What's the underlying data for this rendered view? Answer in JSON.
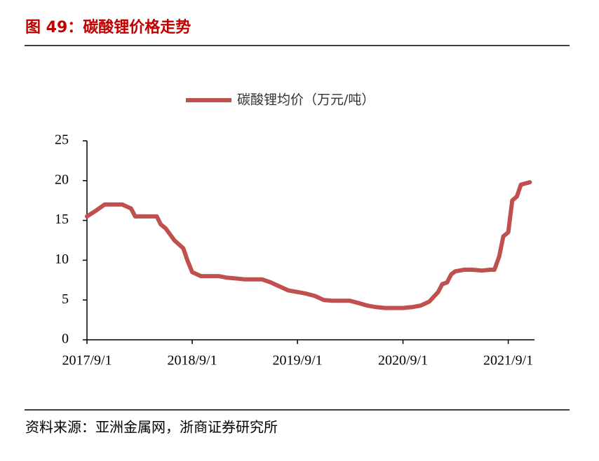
{
  "chart_data": {
    "type": "line",
    "title": "图 49：碳酸锂价格走势",
    "source": "资料来源：亚洲金属网，浙商证券研究所",
    "x": [
      "2017/9/1",
      "2017/10/1",
      "2017/11/1",
      "2017/12/1",
      "2018/1/1",
      "2018/2/1",
      "2018/2/15",
      "2018/3/1",
      "2018/5/1",
      "2018/5/15",
      "2018/6/1",
      "2018/7/1",
      "2018/8/1",
      "2018/8/15",
      "2018/9/1",
      "2018/10/1",
      "2018/11/1",
      "2018/12/1",
      "2019/1/1",
      "2019/2/1",
      "2019/3/1",
      "2019/4/1",
      "2019/5/1",
      "2019/6/1",
      "2019/7/1",
      "2019/8/1",
      "2019/9/1",
      "2019/10/1",
      "2019/11/1",
      "2019/12/1",
      "2020/1/1",
      "2020/2/1",
      "2020/3/1",
      "2020/4/1",
      "2020/5/1",
      "2020/6/1",
      "2020/7/1",
      "2020/8/1",
      "2020/9/1",
      "2020/10/1",
      "2020/11/1",
      "2020/12/1",
      "2021/1/1",
      "2021/1/15",
      "2021/2/1",
      "2021/2/15",
      "2021/3/1",
      "2021/4/1",
      "2021/5/1",
      "2021/6/1",
      "2021/7/1",
      "2021/7/15",
      "2021/8/1",
      "2021/8/15",
      "2021/9/1",
      "2021/9/15",
      "2021/10/1",
      "2021/10/15",
      "2021/11/15"
    ],
    "series": [
      {
        "name": "碳酸锂均价（万元/吨）",
        "color": "#c0504d",
        "values": [
          15.5,
          16.2,
          17,
          17,
          17,
          16.5,
          15.5,
          15.5,
          15.5,
          14.5,
          14,
          12.5,
          11.5,
          10,
          8.5,
          8,
          8,
          8,
          7.8,
          7.7,
          7.6,
          7.6,
          7.6,
          7.2,
          6.7,
          6.2,
          6,
          5.8,
          5.5,
          5,
          4.9,
          4.9,
          4.9,
          4.6,
          4.3,
          4.1,
          4,
          4,
          4,
          4.1,
          4.3,
          4.8,
          6,
          7,
          7.2,
          8.2,
          8.6,
          8.8,
          8.8,
          8.7,
          8.8,
          8.8,
          10.5,
          13,
          13.5,
          17.5,
          18,
          19.5,
          19.8
        ]
      }
    ],
    "xlim": [
      "2017/9/1",
      "2021/12/1"
    ],
    "xticks": [
      "2017/9/1",
      "2018/9/1",
      "2019/9/1",
      "2020/9/1",
      "2021/9/1"
    ],
    "ylim": [
      0,
      25
    ],
    "yticks": [
      0,
      5,
      10,
      15,
      20,
      25
    ],
    "legend": "top"
  }
}
